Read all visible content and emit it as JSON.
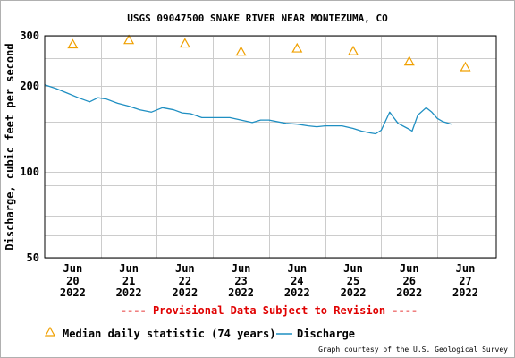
{
  "chart_data": {
    "type": "line",
    "title": "USGS 09047500 SNAKE RIVER NEAR MONTEZUMA, CO",
    "ylabel": "Discharge, cubic feet per second",
    "xlabel": "",
    "y_scale": "log",
    "ylim": [
      50,
      300
    ],
    "y_ticks": [
      50,
      100,
      200,
      300
    ],
    "y_tick_labels": [
      "50",
      "100",
      "200",
      "300"
    ],
    "y_minor_gridlines": [
      60,
      70,
      80,
      90,
      150,
      250
    ],
    "x_range": [
      -0.5,
      7.55
    ],
    "x_ticks": [
      {
        "x": 0,
        "month": "Jun",
        "day": "20",
        "year": "2022"
      },
      {
        "x": 1,
        "month": "Jun",
        "day": "21",
        "year": "2022"
      },
      {
        "x": 2,
        "month": "Jun",
        "day": "22",
        "year": "2022"
      },
      {
        "x": 3,
        "month": "Jun",
        "day": "23",
        "year": "2022"
      },
      {
        "x": 4,
        "month": "Jun",
        "day": "24",
        "year": "2022"
      },
      {
        "x": 5,
        "month": "Jun",
        "day": "25",
        "year": "2022"
      },
      {
        "x": 6,
        "month": "Jun",
        "day": "26",
        "year": "2022"
      },
      {
        "x": 7,
        "month": "Jun",
        "day": "27",
        "year": "2022"
      }
    ],
    "grid": true,
    "legend_position": "bottom",
    "series": [
      {
        "name": "Median daily statistic (74 years)",
        "kind": "marker-triangle",
        "color": "#f0a000",
        "x": [
          0,
          1,
          2,
          3,
          4,
          5,
          6,
          7
        ],
        "values": [
          280,
          290,
          282,
          264,
          271,
          265,
          244,
          233
        ]
      },
      {
        "name": "Discharge",
        "kind": "line",
        "color": "#1f8fc2",
        "x": [
          -0.5,
          -0.3,
          -0.1,
          0.1,
          0.3,
          0.45,
          0.6,
          0.8,
          1.0,
          1.2,
          1.4,
          1.6,
          1.8,
          1.95,
          2.1,
          2.3,
          2.5,
          2.8,
          3.0,
          3.2,
          3.35,
          3.5,
          3.8,
          4.0,
          4.2,
          4.35,
          4.5,
          4.8,
          5.0,
          5.15,
          5.3,
          5.4,
          5.5,
          5.65,
          5.8,
          6.0,
          6.05,
          6.15,
          6.3,
          6.4,
          6.5,
          6.6,
          6.75
        ],
        "values": [
          202,
          196,
          189,
          182,
          176,
          182,
          180,
          174,
          170,
          165,
          162,
          168,
          165,
          161,
          160,
          155,
          155,
          155,
          152,
          149,
          152,
          152,
          148,
          147,
          145,
          144,
          145,
          145,
          142,
          139,
          137,
          136,
          140,
          162,
          148,
          141,
          139,
          158,
          168,
          162,
          154,
          150,
          147
        ]
      }
    ]
  },
  "notice": "---- Provisional Data Subject to Revision ----",
  "legend": {
    "median_label": "Median daily statistic (74 years)",
    "discharge_label": "Discharge"
  },
  "credit": "Graph courtesy of the U.S. Geological Survey",
  "colors": {
    "median": "#f0a000",
    "discharge": "#1f8fc2",
    "notice": "#e00000",
    "grid": "#cccccc",
    "text": "#000000"
  }
}
